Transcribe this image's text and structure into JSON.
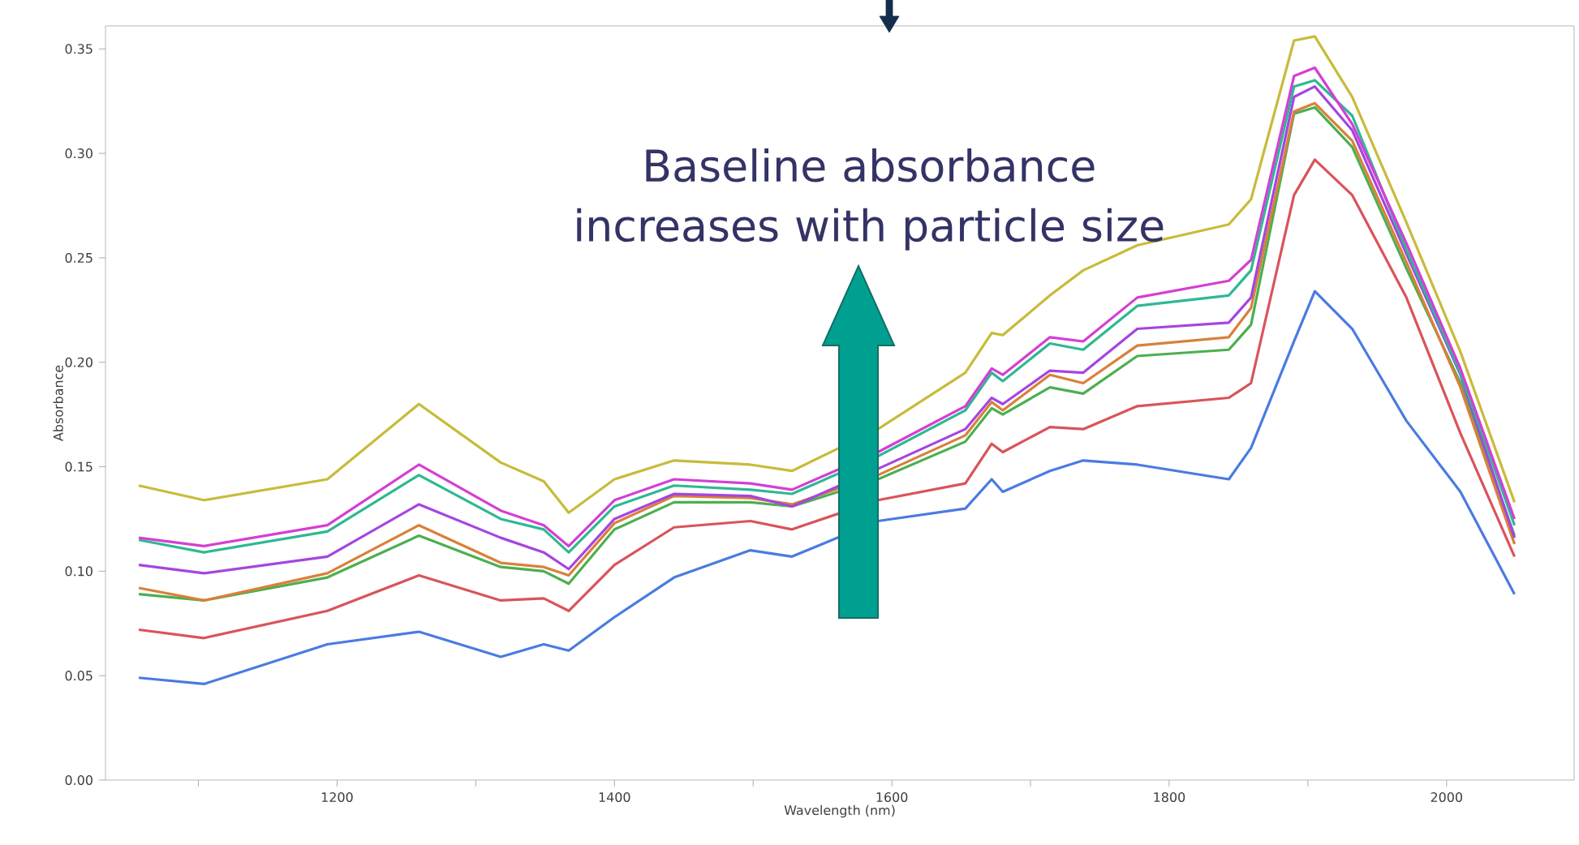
{
  "chart_data": {
    "type": "line",
    "xlabel": "Wavelength (nm)",
    "ylabel": "Absorbance",
    "annotations": [
      "Baseline absorbance increases with particle size"
    ],
    "xlim": [
      1033,
      2092
    ],
    "ylim": [
      0,
      0.361
    ],
    "xticks": [
      {
        "value": 1100,
        "label": null
      },
      1200,
      {
        "value": 1300,
        "label": null
      },
      1400,
      {
        "value": 1500,
        "label": null
      },
      1600,
      {
        "value": 1700,
        "label": null
      },
      1800,
      {
        "value": 1900,
        "label": null
      },
      2000
    ],
    "yticks": [
      {
        "value": 0,
        "label": "0.00"
      },
      {
        "value": 0.05,
        "label": "0.05"
      },
      {
        "value": 0.1,
        "label": "0.10"
      },
      {
        "value": 0.15,
        "label": "0.15"
      },
      {
        "value": 0.2,
        "label": "0.20"
      },
      {
        "value": 0.25,
        "label": "0.25"
      },
      {
        "value": 0.3,
        "label": "0.30"
      },
      {
        "value": 0.35,
        "label": "0.35"
      }
    ],
    "x": [
      1057,
      1104,
      1193,
      1259,
      1318,
      1349,
      1367,
      1400,
      1443,
      1498,
      1528,
      1590,
      1653,
      1672,
      1680,
      1714,
      1738,
      1777,
      1843,
      1859,
      1890,
      1905,
      1932,
      1971,
      2010,
      2049
    ],
    "line_style": "solid",
    "series": [
      {
        "color": "#4a7be0",
        "values": [
          0.049,
          0.046,
          0.065,
          0.071,
          0.059,
          0.065,
          0.062,
          0.078,
          0.097,
          0.11,
          0.107,
          0.124,
          0.13,
          0.144,
          0.138,
          0.148,
          0.153,
          0.151,
          0.144,
          0.159,
          0.21,
          0.234,
          0.216,
          0.172,
          0.138,
          0.089
        ]
      },
      {
        "color": "#d9545a",
        "values": [
          0.072,
          0.068,
          0.081,
          0.098,
          0.086,
          0.087,
          0.081,
          0.103,
          0.121,
          0.124,
          0.12,
          0.134,
          0.142,
          0.161,
          0.157,
          0.169,
          0.168,
          0.179,
          0.183,
          0.19,
          0.28,
          0.297,
          0.28,
          0.231,
          0.166,
          0.107
        ]
      },
      {
        "color": "#4caf50",
        "values": [
          0.089,
          0.086,
          0.097,
          0.117,
          0.102,
          0.1,
          0.094,
          0.12,
          0.133,
          0.133,
          0.131,
          0.144,
          0.162,
          0.178,
          0.175,
          0.188,
          0.185,
          0.203,
          0.206,
          0.218,
          0.319,
          0.322,
          0.303,
          0.245,
          0.19,
          0.117
        ]
      },
      {
        "color": "#d9803a",
        "values": [
          0.092,
          0.086,
          0.099,
          0.122,
          0.104,
          0.102,
          0.098,
          0.123,
          0.136,
          0.135,
          0.132,
          0.146,
          0.165,
          0.181,
          0.177,
          0.194,
          0.19,
          0.208,
          0.212,
          0.226,
          0.32,
          0.324,
          0.306,
          0.248,
          0.188,
          0.113
        ]
      },
      {
        "color": "#a545e0",
        "values": [
          0.103,
          0.099,
          0.107,
          0.132,
          0.116,
          0.109,
          0.101,
          0.125,
          0.137,
          0.136,
          0.131,
          0.149,
          0.168,
          0.183,
          0.18,
          0.196,
          0.195,
          0.216,
          0.219,
          0.231,
          0.327,
          0.332,
          0.311,
          0.252,
          0.194,
          0.116
        ]
      },
      {
        "color": "#2eb894",
        "values": [
          0.115,
          0.109,
          0.119,
          0.146,
          0.125,
          0.12,
          0.109,
          0.131,
          0.141,
          0.139,
          0.137,
          0.155,
          0.177,
          0.195,
          0.191,
          0.209,
          0.206,
          0.227,
          0.232,
          0.244,
          0.332,
          0.335,
          0.318,
          0.254,
          0.195,
          0.122
        ]
      },
      {
        "color": "#d43fd4",
        "values": [
          0.116,
          0.112,
          0.122,
          0.151,
          0.129,
          0.122,
          0.112,
          0.134,
          0.144,
          0.142,
          0.139,
          0.157,
          0.179,
          0.197,
          0.194,
          0.212,
          0.21,
          0.231,
          0.239,
          0.249,
          0.337,
          0.341,
          0.314,
          0.257,
          0.197,
          0.125
        ]
      },
      {
        "color": "#c8bb3a",
        "values": [
          0.141,
          0.134,
          0.144,
          0.18,
          0.152,
          0.143,
          0.128,
          0.144,
          0.153,
          0.151,
          0.148,
          0.168,
          0.195,
          0.214,
          0.213,
          0.232,
          0.244,
          0.256,
          0.266,
          0.278,
          0.354,
          0.356,
          0.327,
          0.267,
          0.205,
          0.133
        ]
      }
    ]
  }
}
